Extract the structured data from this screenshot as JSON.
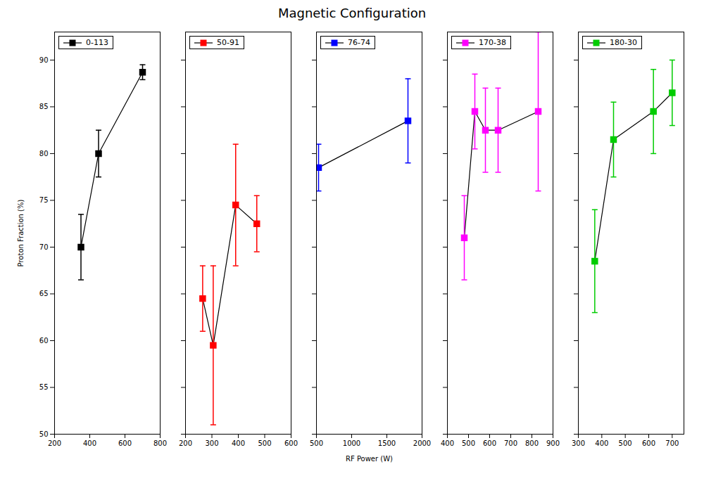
{
  "chart_data": [
    {
      "type": "line",
      "title": "Magnetic Configuration",
      "ylabel": "Proton Fraction (%)",
      "x": [
        350,
        450,
        700
      ],
      "series": [
        {
          "name": "0-113",
          "color": "black",
          "values": [
            70.0,
            80.0,
            88.7
          ],
          "yerr": [
            3.5,
            2.5,
            0.8
          ]
        }
      ],
      "xlim": [
        200,
        800
      ],
      "xticks": [
        200,
        400,
        600,
        800
      ],
      "ylim": [
        50,
        93
      ],
      "yticks": [
        50,
        55,
        60,
        65,
        70,
        75,
        80,
        85,
        90
      ],
      "marker": "square",
      "legend": "upper left"
    },
    {
      "type": "line",
      "x": [
        265,
        305,
        390,
        470
      ],
      "series": [
        {
          "name": "50-91",
          "color": "red",
          "values": [
            64.5,
            59.5,
            74.5,
            72.5
          ],
          "yerr": [
            3.5,
            8.5,
            6.5,
            3.0
          ]
        }
      ],
      "xlim": [
        200,
        600
      ],
      "xticks": [
        200,
        300,
        400,
        500,
        600
      ],
      "ylim": [
        50,
        93
      ],
      "yticks": [
        50,
        55,
        60,
        65,
        70,
        75,
        80,
        85,
        90
      ],
      "marker": "square",
      "legend": "upper left",
      "tick_labels": "x"
    },
    {
      "type": "line",
      "xlabel": "RF Power (W)",
      "x": [
        530,
        1800
      ],
      "series": [
        {
          "name": "76-74",
          "color": "blue",
          "values": [
            78.5,
            83.5
          ],
          "yerr": [
            2.5,
            4.5
          ]
        }
      ],
      "xlim": [
        500,
        2000
      ],
      "xticks": [
        500,
        1000,
        1500,
        2000
      ],
      "ylim": [
        50,
        93
      ],
      "yticks": [
        50,
        55,
        60,
        65,
        70,
        75,
        80,
        85,
        90
      ],
      "marker": "square",
      "legend": "upper left",
      "tick_labels": "x"
    },
    {
      "type": "line",
      "x": [
        480,
        530,
        580,
        640,
        830
      ],
      "series": [
        {
          "name": "170-38",
          "color": "magenta",
          "values": [
            71.0,
            84.5,
            82.5,
            82.5,
            84.5
          ],
          "yerr": [
            4.5,
            4.0,
            4.5,
            4.5,
            8.5
          ]
        }
      ],
      "xlim": [
        400,
        900
      ],
      "xticks": [
        400,
        500,
        600,
        700,
        800,
        900
      ],
      "ylim": [
        50,
        93
      ],
      "yticks": [
        50,
        55,
        60,
        65,
        70,
        75,
        80,
        85,
        90
      ],
      "marker": "square",
      "legend": "upper left",
      "tick_labels": "x"
    },
    {
      "type": "line",
      "x": [
        370,
        450,
        620,
        700
      ],
      "series": [
        {
          "name": "180-30",
          "color": "#00cc00",
          "values": [
            68.5,
            81.5,
            84.5,
            86.5
          ],
          "yerr": [
            5.5,
            4.0,
            4.5,
            3.5
          ]
        }
      ],
      "xlim": [
        300,
        750
      ],
      "xticks": [
        300,
        400,
        500,
        600,
        700
      ],
      "ylim": [
        50,
        93
      ],
      "yticks": [
        50,
        55,
        60,
        65,
        70,
        75,
        80,
        85,
        90
      ],
      "marker": "square",
      "legend": "upper left",
      "tick_labels": "x"
    }
  ]
}
